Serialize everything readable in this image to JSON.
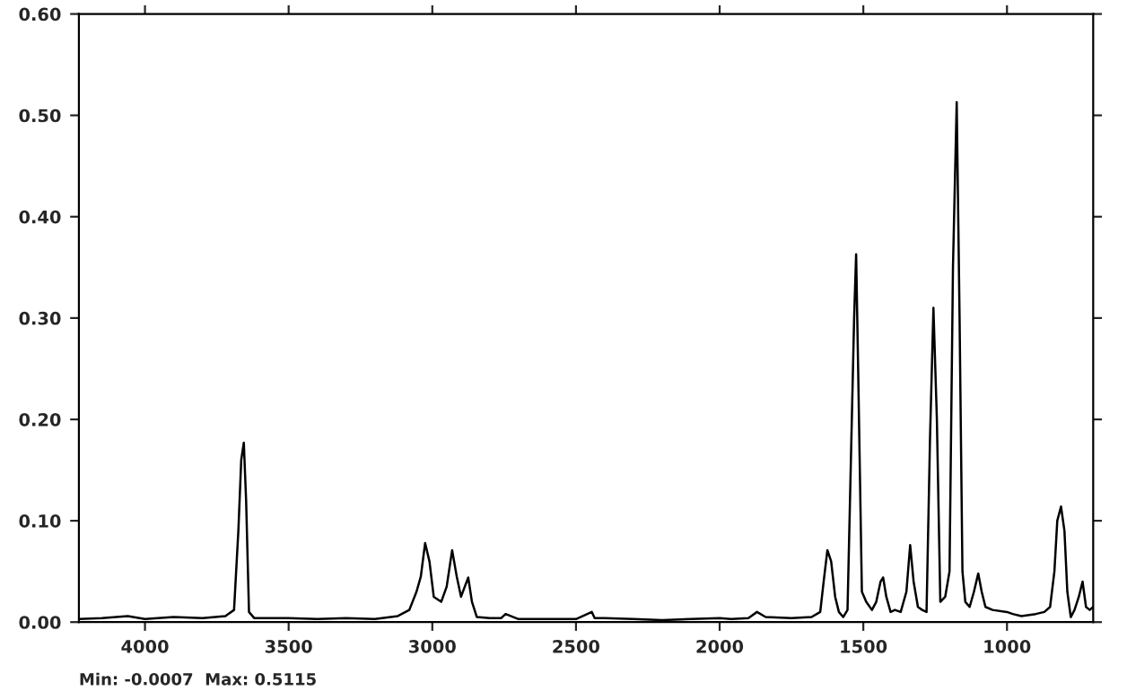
{
  "chart_data": {
    "type": "line",
    "x": [
      4230,
      4150,
      4060,
      4000,
      3900,
      3800,
      3720,
      3690,
      3675,
      3665,
      3656,
      3648,
      3638,
      3620,
      3500,
      3400,
      3300,
      3200,
      3120,
      3080,
      3055,
      3040,
      3025,
      3010,
      2995,
      2969,
      2950,
      2931,
      2915,
      2900,
      2887,
      2875,
      2862,
      2845,
      2800,
      2760,
      2745,
      2700,
      2600,
      2500,
      2445,
      2435,
      2400,
      2300,
      2200,
      2100,
      2000,
      1960,
      1900,
      1870,
      1840,
      1750,
      1680,
      1650,
      1638,
      1625,
      1612,
      1598,
      1585,
      1570,
      1555,
      1540,
      1532,
      1525,
      1518,
      1505,
      1490,
      1470,
      1455,
      1440,
      1431,
      1420,
      1405,
      1390,
      1370,
      1350,
      1337,
      1325,
      1310,
      1295,
      1280,
      1268,
      1256,
      1244,
      1232,
      1215,
      1200,
      1188,
      1175,
      1165,
      1155,
      1145,
      1130,
      1115,
      1100,
      1088,
      1075,
      1050,
      1000,
      980,
      950,
      900,
      870,
      850,
      835,
      825,
      812,
      800,
      790,
      778,
      765,
      750,
      737,
      725,
      712,
      700
    ],
    "series": [
      {
        "color": "#000000",
        "values": [
          0.003,
          0.004,
          0.006,
          0.003,
          0.005,
          0.004,
          0.006,
          0.012,
          0.09,
          0.16,
          0.177,
          0.12,
          0.01,
          0.004,
          0.004,
          0.003,
          0.004,
          0.003,
          0.006,
          0.012,
          0.03,
          0.045,
          0.078,
          0.06,
          0.025,
          0.02,
          0.035,
          0.071,
          0.045,
          0.025,
          0.035,
          0.044,
          0.02,
          0.005,
          0.004,
          0.004,
          0.008,
          0.003,
          0.003,
          0.003,
          0.01,
          0.004,
          0.004,
          0.003,
          0.002,
          0.003,
          0.004,
          0.003,
          0.004,
          0.01,
          0.005,
          0.004,
          0.005,
          0.01,
          0.04,
          0.071,
          0.06,
          0.025,
          0.01,
          0.005,
          0.012,
          0.2,
          0.3,
          0.363,
          0.25,
          0.03,
          0.02,
          0.012,
          0.02,
          0.04,
          0.044,
          0.025,
          0.01,
          0.012,
          0.01,
          0.03,
          0.076,
          0.04,
          0.015,
          0.012,
          0.01,
          0.18,
          0.31,
          0.2,
          0.02,
          0.025,
          0.05,
          0.35,
          0.513,
          0.3,
          0.05,
          0.02,
          0.015,
          0.03,
          0.048,
          0.03,
          0.015,
          0.012,
          0.01,
          0.008,
          0.006,
          0.008,
          0.01,
          0.015,
          0.05,
          0.1,
          0.114,
          0.09,
          0.03,
          0.005,
          0.012,
          0.025,
          0.04,
          0.015,
          0.012,
          0.015
        ]
      }
    ],
    "xlim": [
      4230,
      700
    ],
    "ylim": [
      0,
      0.6
    ],
    "xticks": [
      4000,
      3500,
      3000,
      2500,
      2000,
      1500,
      1000
    ],
    "yticks": [
      {
        "value": 0,
        "label": "0.00"
      },
      {
        "value": 0.1,
        "label": "0.10"
      },
      {
        "value": 0.2,
        "label": "0.20"
      },
      {
        "value": 0.3,
        "label": "0.30"
      },
      {
        "value": 0.4,
        "label": "0.40"
      },
      {
        "value": 0.5,
        "label": "0.50"
      },
      {
        "value": 0.6,
        "label": "0.60"
      }
    ],
    "annotations": [
      "Min: -0.0007  Max: 0.5115"
    ],
    "grid": false,
    "legend": false,
    "line_style": "solid",
    "marker": "none"
  }
}
